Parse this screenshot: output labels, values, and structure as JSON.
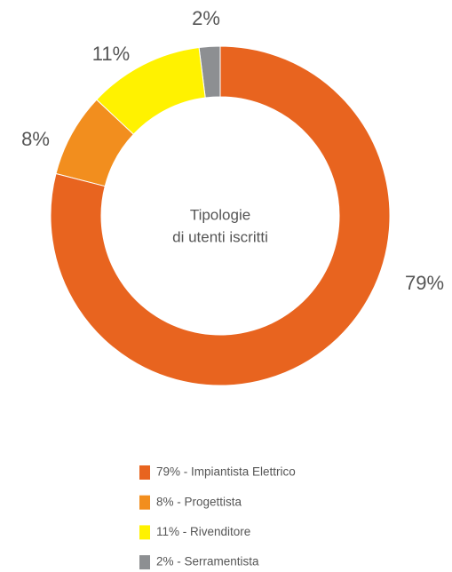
{
  "chart_data": {
    "type": "donut",
    "center_label": [
      "Tipologie",
      "di utenti iscritti"
    ],
    "categories": [
      "79% - Impiantista Elettrico",
      "8% - Progettista",
      "11% - Rivenditore",
      "2% - Serramentista"
    ],
    "values": [
      79,
      8,
      11,
      2
    ],
    "value_labels": [
      "79%",
      "8%",
      "11%",
      "2%"
    ],
    "colors": [
      "#e8641f",
      "#f28e1e",
      "#fff200",
      "#8d8f92"
    ]
  }
}
